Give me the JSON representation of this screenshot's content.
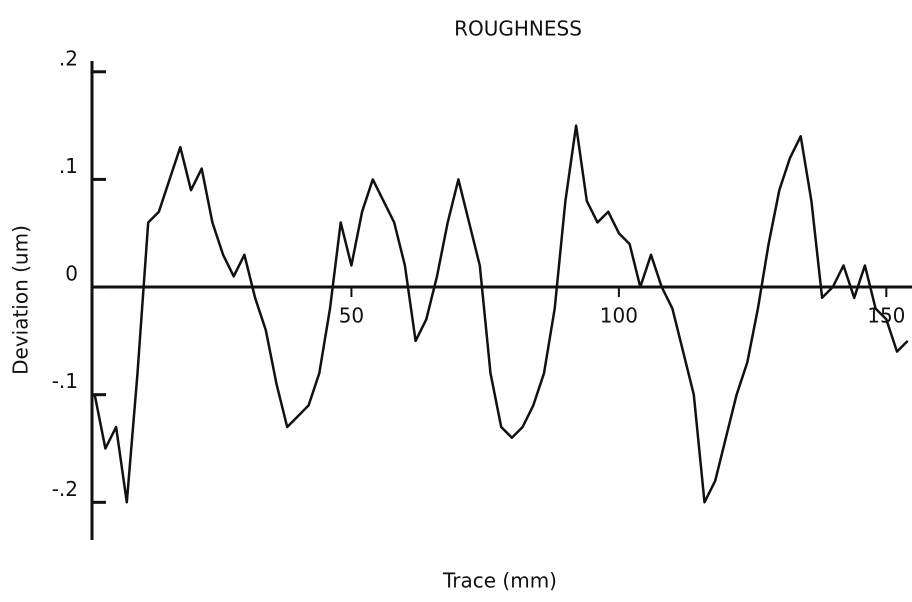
{
  "chart_data": {
    "type": "line",
    "title": "ROUGHNESS",
    "x_label": "Trace (mm)",
    "y_label": "Deviation (um)",
    "x": [
      2,
      4,
      6,
      8,
      10,
      12,
      14,
      16,
      18,
      20,
      22,
      24,
      26,
      28,
      30,
      32,
      34,
      36,
      38,
      40,
      42,
      44,
      46,
      48,
      50,
      52,
      54,
      56,
      58,
      60,
      62,
      64,
      66,
      68,
      70,
      72,
      74,
      76,
      78,
      80,
      82,
      84,
      86,
      88,
      90,
      92,
      94,
      96,
      98,
      100,
      102,
      104,
      106,
      108,
      110,
      112,
      114,
      116,
      118,
      120,
      122,
      124,
      126,
      128,
      130,
      132,
      134,
      136,
      138,
      140,
      142,
      144,
      146,
      148,
      150,
      152,
      154
    ],
    "series": [
      {
        "name": "Roughness",
        "color": "#111111",
        "values": [
          -0.1,
          -0.15,
          -0.13,
          -0.2,
          -0.08,
          0.06,
          0.07,
          0.1,
          0.13,
          0.09,
          0.11,
          0.06,
          0.03,
          0.01,
          0.03,
          -0.01,
          -0.04,
          -0.09,
          -0.13,
          -0.12,
          -0.11,
          -0.08,
          -0.02,
          0.06,
          0.02,
          0.07,
          0.1,
          0.08,
          0.06,
          0.02,
          -0.05,
          -0.03,
          0.01,
          0.06,
          0.1,
          0.06,
          0.02,
          -0.08,
          -0.13,
          -0.14,
          -0.13,
          -0.11,
          -0.08,
          -0.02,
          0.08,
          0.15,
          0.08,
          0.06,
          0.07,
          0.05,
          0.04,
          0.0,
          0.03,
          0.0,
          -0.02,
          -0.06,
          -0.1,
          -0.2,
          -0.18,
          -0.14,
          -0.1,
          -0.07,
          -0.02,
          0.04,
          0.09,
          0.12,
          0.14,
          0.08,
          -0.01,
          0.0,
          0.02,
          -0.01,
          0.02,
          -0.02,
          -0.03,
          -0.06,
          -0.05
        ]
      }
    ],
    "xlim": [
      1.5,
      154.8
    ],
    "xticks": [
      50,
      100,
      150
    ],
    "ylim": [
      -0.235,
      0.21
    ],
    "yticks": [
      {
        "value": 0.2,
        "label": ".2"
      },
      {
        "value": 0.1,
        "label": ".1"
      },
      0,
      {
        "value": -0.1,
        "label": "-.1"
      },
      {
        "value": -0.2,
        "label": "-.2"
      }
    ],
    "grid": false
  }
}
